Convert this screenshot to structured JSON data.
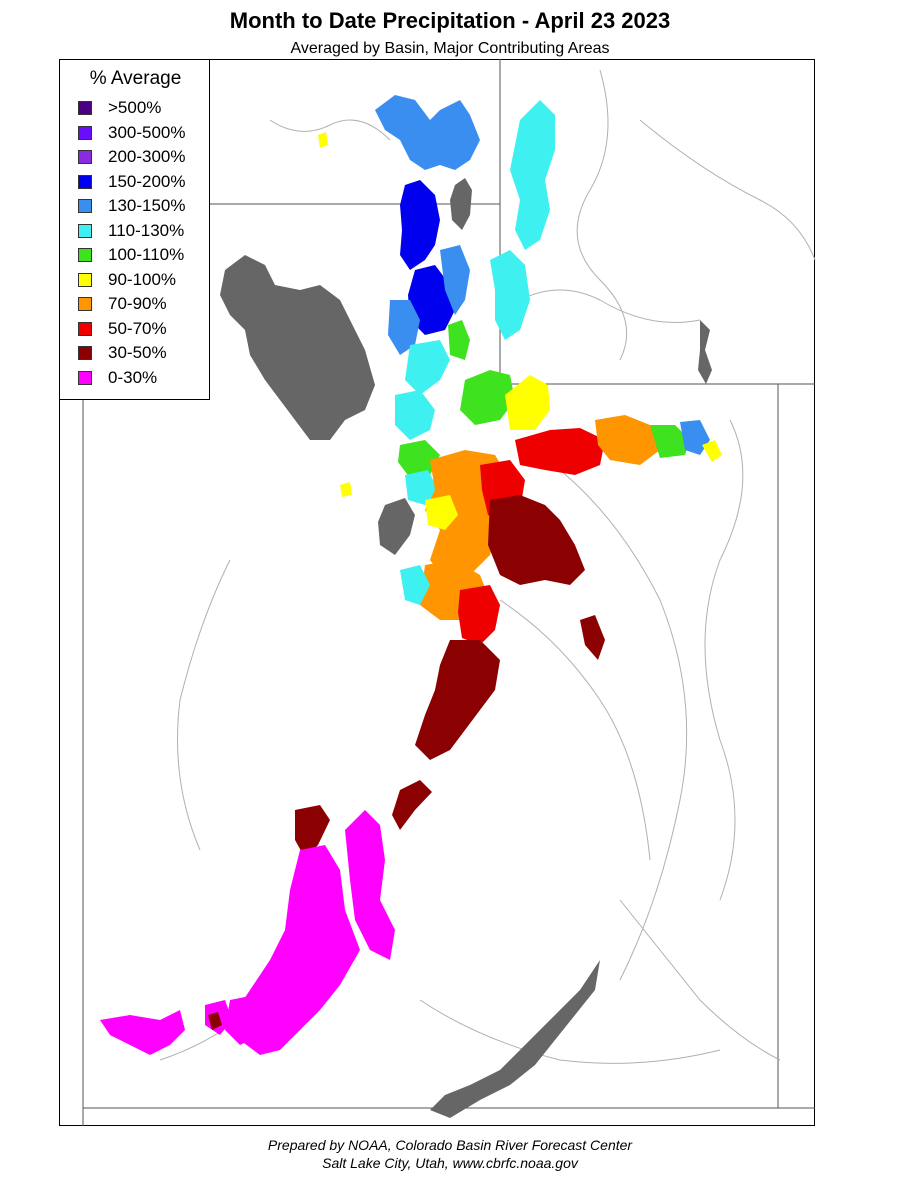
{
  "header": {
    "title": "Month to Date Precipitation - April 23 2023",
    "subtitle": "Averaged by Basin, Major Contributing Areas"
  },
  "legend": {
    "title": "% Average",
    "items": [
      {
        "label": ">500%",
        "color": "#4b0082"
      },
      {
        "label": "300-500%",
        "color": "#6a0dff"
      },
      {
        "label": "200-300%",
        "color": "#8a2be2"
      },
      {
        "label": "150-200%",
        "color": "#0000ee"
      },
      {
        "label": "130-150%",
        "color": "#3a8eef"
      },
      {
        "label": "110-130%",
        "color": "#3ff0f0"
      },
      {
        "label": "100-110%",
        "color": "#3ee21e"
      },
      {
        "label": "90-100%",
        "color": "#ffff00"
      },
      {
        "label": "70-90%",
        "color": "#ff9500"
      },
      {
        "label": "50-70%",
        "color": "#ee0000"
      },
      {
        "label": "30-50%",
        "color": "#8b0000"
      },
      {
        "label": "0-30%",
        "color": "#ff00ff"
      }
    ]
  },
  "map": {
    "lake_color": "#666666",
    "boundary_color": "#555555",
    "river_color": "#b0b0b0"
  },
  "footer": {
    "line1": "Prepared by NOAA, Colorado Basin River Forecast Center",
    "line2": "Salt Lake City, Utah, www.cbrfc.noaa.gov"
  }
}
